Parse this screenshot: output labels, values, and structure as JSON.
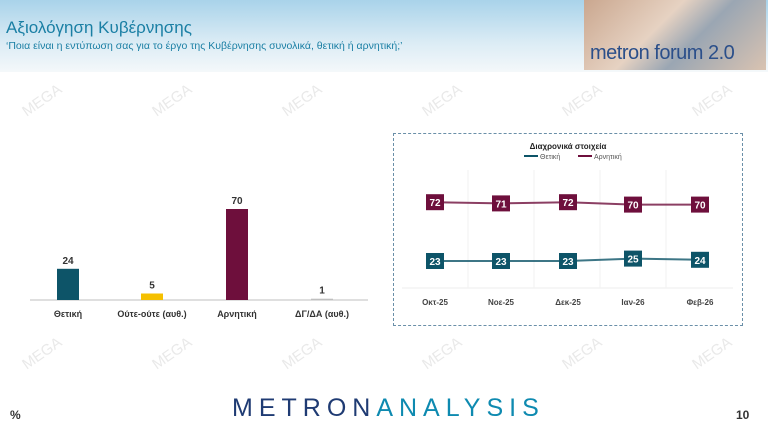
{
  "header": {
    "title": "Αξιολόγηση Κυβέρνησης",
    "subtitle": "‘Ποια είναι η εντύπωση σας για το έργο της Κυβέρνησης συνολικά, θετική ή αρνητική;’",
    "forum_logo": "metron forum 2.0"
  },
  "watermark": "MEGA",
  "footer": {
    "logo_part1": "METRON",
    "logo_part2": "ANALYSIS",
    "unit": "%",
    "page_number": "10"
  },
  "colors": {
    "positive": "#0d5468",
    "negative": "#6e0f3c",
    "neutral": "#f5c000",
    "dk": "#bfbfbf"
  },
  "chart_data": [
    {
      "type": "bar",
      "categories": [
        "Θετική",
        "Ούτε-ούτε (αυθ.)",
        "Αρνητική",
        "ΔΓ/ΔΑ (αυθ.)"
      ],
      "values": [
        24,
        5,
        70,
        1
      ],
      "colors": [
        "#0d5468",
        "#f5c000",
        "#6e0f3c",
        "#bfbfbf"
      ],
      "grid": false
    },
    {
      "type": "line",
      "title": "Διαχρονικά στοιχεία",
      "categories": [
        "Οκτ-25",
        "Νοε-25",
        "Δεκ-25",
        "Ιαν-26",
        "Φεβ-26"
      ],
      "series": [
        {
          "name": "Θετική",
          "values": [
            23,
            23,
            23,
            25,
            24
          ],
          "color": "#0d5468"
        },
        {
          "name": "Αρνητική",
          "values": [
            72,
            71,
            72,
            70,
            70
          ],
          "color": "#6e0f3c"
        }
      ],
      "legend": "top",
      "grid": true
    }
  ]
}
